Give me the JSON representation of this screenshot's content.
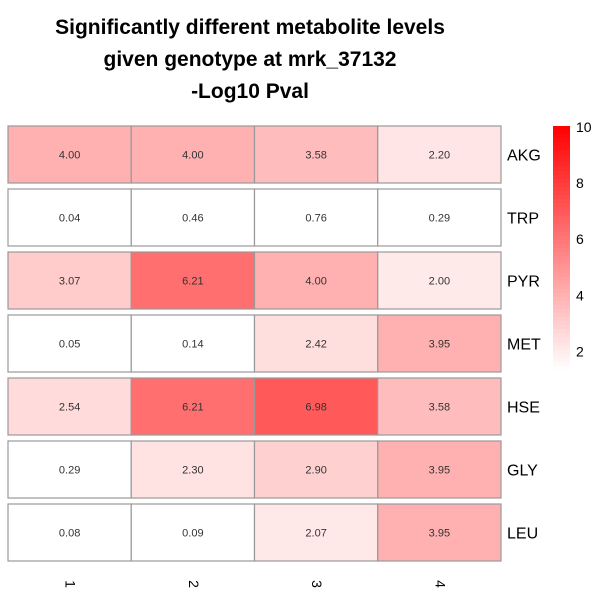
{
  "chart_data": {
    "type": "heatmap",
    "title": [
      "Significantly different metabolite levels",
      "given genotype at mrk_37132",
      "-Log10 Pval"
    ],
    "columns": [
      "1",
      "2",
      "3",
      "4"
    ],
    "rows": [
      "AKG",
      "TRP",
      "PYR",
      "MET",
      "HSE",
      "GLY",
      "LEU"
    ],
    "values": [
      [
        "4.00",
        "4.00",
        "3.58",
        "2.20"
      ],
      [
        "0.04",
        "0.46",
        "0.76",
        "0.29"
      ],
      [
        "3.07",
        "6.21",
        "4.00",
        "2.00"
      ],
      [
        "0.05",
        "0.14",
        "2.42",
        "3.95"
      ],
      [
        "2.54",
        "6.21",
        "6.98",
        "3.58"
      ],
      [
        "0.29",
        "2.30",
        "2.90",
        "3.95"
      ],
      [
        "0.08",
        "0.09",
        "2.07",
        "3.95"
      ]
    ],
    "color_scale": {
      "low": "#ffffff",
      "high": "#ff0000",
      "min": 1.3,
      "max": 10,
      "ticks": [
        "2",
        "4",
        "6",
        "8",
        "10"
      ],
      "tick_values": [
        2,
        4,
        6,
        8,
        10
      ]
    },
    "legend": "right"
  }
}
